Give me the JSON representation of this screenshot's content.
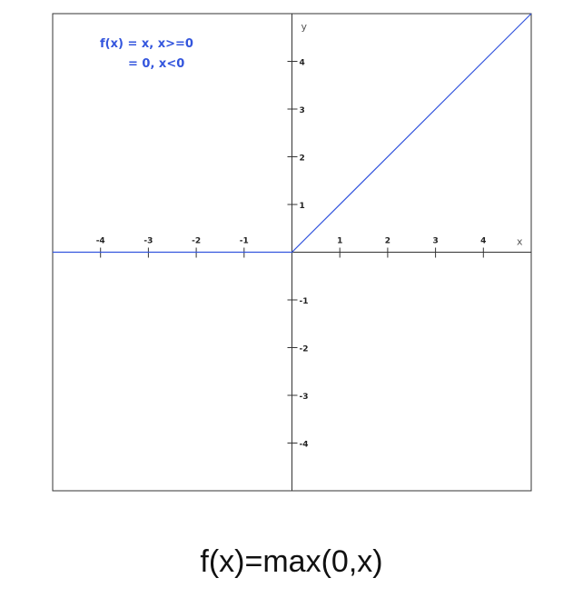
{
  "chart_data": {
    "type": "line",
    "series": [
      {
        "x": [
          -5,
          0,
          5
        ],
        "y": [
          0,
          0,
          5
        ],
        "color": "#3355dd"
      }
    ],
    "legend_lines": [
      "f(x) = x, x>=0",
      "= 0, x<0"
    ],
    "legend_color": "#3355dd",
    "legend_placement": "top-left",
    "xlabel": "x",
    "ylabel": "y",
    "xlim": [
      -5,
      5
    ],
    "ylim": [
      -5,
      5
    ],
    "xticks": [
      -4,
      -3,
      -2,
      -1,
      1,
      2,
      3,
      4
    ],
    "yticks": [
      4,
      3,
      2,
      1,
      -1,
      -2,
      -3,
      -4
    ],
    "xtick_labels": [
      "-4",
      "-3",
      "-2",
      "-1",
      "1",
      "2",
      "3",
      "4"
    ],
    "ytick_labels": [
      "4",
      "3",
      "2",
      "1",
      "-1",
      "-2",
      "-3",
      "-4"
    ],
    "grid": false
  },
  "caption": "f(x)=max(0,x)"
}
